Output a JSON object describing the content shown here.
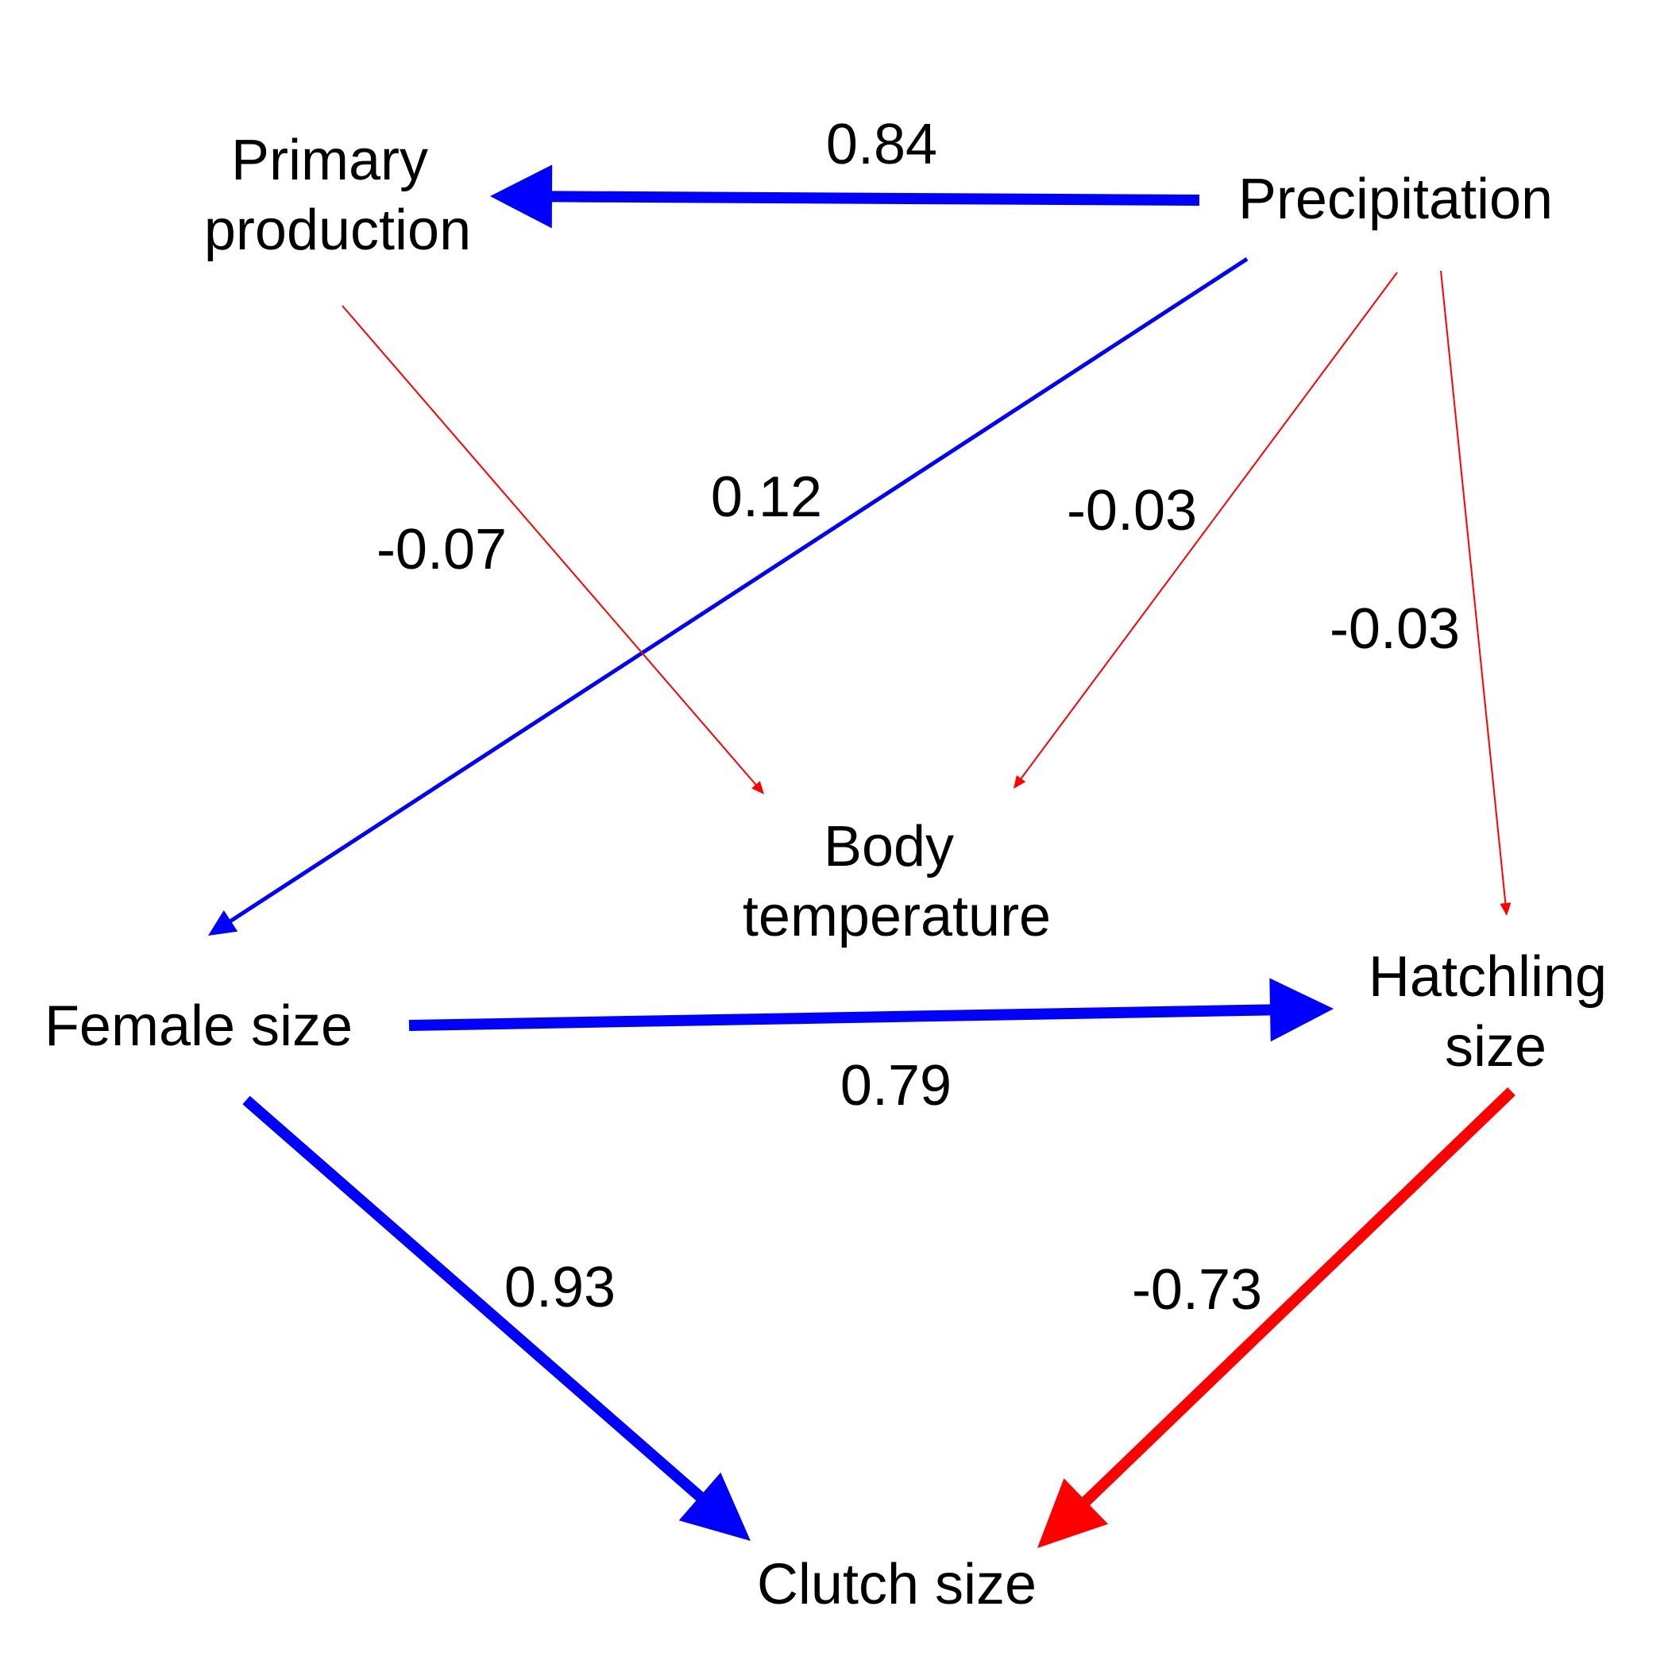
{
  "colors": {
    "positive": "#0000ff",
    "negative": "#ff0000",
    "text": "#000000",
    "background": "#ffffff"
  },
  "nodes": {
    "primary_production": {
      "lines": [
        "Primary",
        "production"
      ]
    },
    "precipitation": {
      "lines": [
        "Precipitation"
      ]
    },
    "body_temperature": {
      "lines": [
        "Body",
        "temperature"
      ]
    },
    "female_size": {
      "lines": [
        "Female size"
      ]
    },
    "hatchling_size": {
      "lines": [
        "Hatchling",
        "size"
      ]
    },
    "clutch_size": {
      "lines": [
        "Clutch size"
      ]
    }
  },
  "edges": [
    {
      "id": "precip-to-primary",
      "from": "Precipitation",
      "to": "Primary production",
      "coefficient": 0.84,
      "label": "0.84",
      "sign": "positive"
    },
    {
      "id": "precip-to-female",
      "from": "Precipitation",
      "to": "Female size",
      "coefficient": 0.12,
      "label": "0.12",
      "sign": "positive"
    },
    {
      "id": "primary-to-bodytemp",
      "from": "Primary production",
      "to": "Body temperature",
      "coefficient": -0.07,
      "label": "-0.07",
      "sign": "negative"
    },
    {
      "id": "precip-to-bodytemp",
      "from": "Precipitation",
      "to": "Body temperature",
      "coefficient": -0.03,
      "label": "-0.03",
      "sign": "negative"
    },
    {
      "id": "precip-to-hatchling",
      "from": "Precipitation",
      "to": "Hatchling size",
      "coefficient": -0.03,
      "label": "-0.03",
      "sign": "negative"
    },
    {
      "id": "female-to-hatchling",
      "from": "Female size",
      "to": "Hatchling size",
      "coefficient": 0.79,
      "label": "0.79",
      "sign": "positive"
    },
    {
      "id": "female-to-clutch",
      "from": "Female size",
      "to": "Clutch size",
      "coefficient": 0.93,
      "label": "0.93",
      "sign": "positive"
    },
    {
      "id": "hatchling-to-clutch",
      "from": "Hatchling size",
      "to": "Clutch size",
      "coefficient": -0.73,
      "label": "-0.73",
      "sign": "negative"
    }
  ]
}
